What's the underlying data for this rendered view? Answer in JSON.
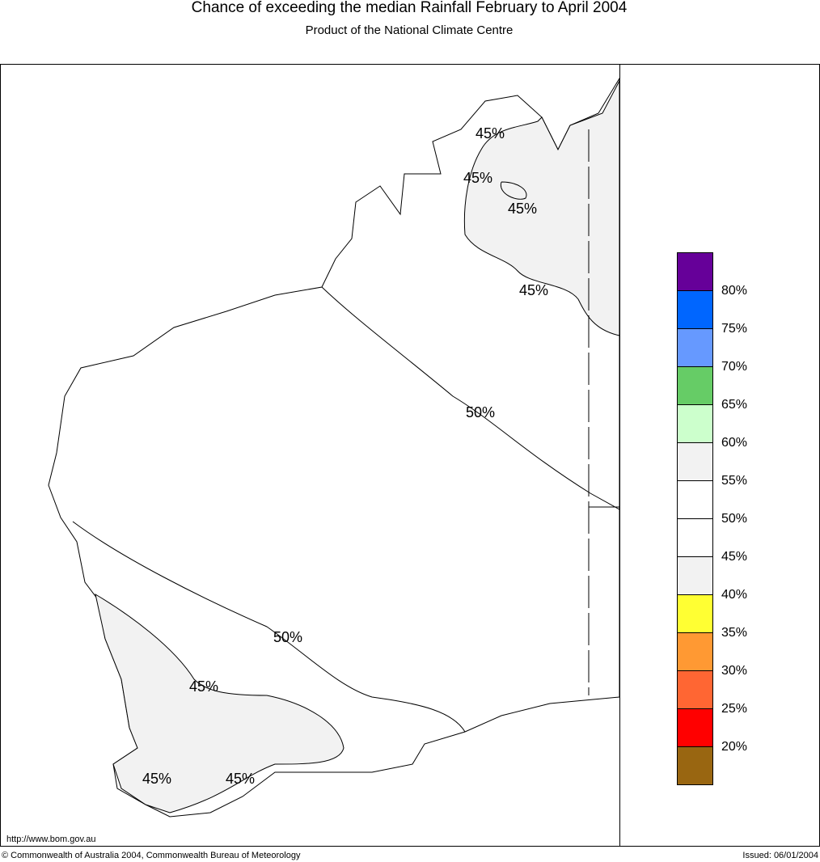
{
  "header": {
    "title": "Chance of exceeding the median Rainfall February to April 2004",
    "subtitle": "Product of the National Climate Centre"
  },
  "map": {
    "contour_labels": [
      "45%",
      "45%",
      "45%",
      "45%",
      "50%",
      "50%",
      "45%",
      "45%",
      "45%"
    ]
  },
  "legend": {
    "labels": [
      "80%",
      "75%",
      "70%",
      "65%",
      "60%",
      "55%",
      "50%",
      "45%",
      "40%",
      "35%",
      "30%",
      "25%",
      "20%"
    ],
    "colors": [
      "#660099",
      "#0066ff",
      "#6699ff",
      "#66cc66",
      "#ccffcc",
      "#f2f2f2",
      "#ffffff",
      "#ffffff",
      "#f2f2f2",
      "#ffff33",
      "#ff9933",
      "#ff6633",
      "#ff0000",
      "#996611"
    ]
  },
  "footer": {
    "url": "http://www.bom.gov.au",
    "copyright": "© Commonwealth of Australia 2004, Commonwealth Bureau of Meteorology",
    "issued": "Issued: 06/01/2004"
  }
}
